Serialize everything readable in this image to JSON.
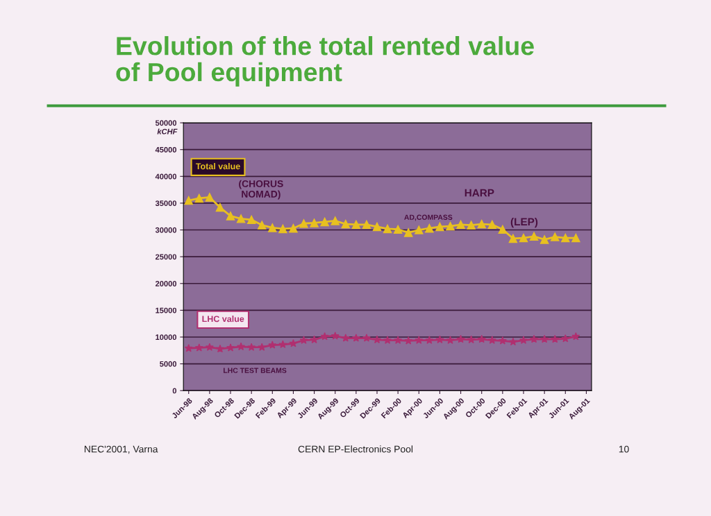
{
  "chart_data": {
    "type": "line",
    "title": "Evolution of the total rented value\nof Pool equipment",
    "ylabel": "kCHF",
    "categories": [
      "Jun-98",
      null,
      "Aug-98",
      null,
      "Oct-98",
      null,
      "Dec-98",
      null,
      "Feb-99",
      null,
      "Apr-99",
      null,
      "Jun-99",
      null,
      "Aug-99",
      null,
      "Oct-99",
      null,
      "Dec-99",
      null,
      "Feb-00",
      null,
      "Apr-00",
      null,
      "Jun-00",
      null,
      "Aug-00",
      null,
      "Oct-00",
      null,
      "Dec-00",
      null,
      "Feb-01",
      null,
      "Apr-01",
      null,
      "Jun-01",
      null,
      "Aug-01"
    ],
    "series": [
      {
        "name": "Total value",
        "color": "#e8c020",
        "marker": "triangle",
        "values": [
          35500,
          35900,
          36100,
          34200,
          32600,
          32100,
          31900,
          30900,
          30400,
          30200,
          30300,
          31200,
          31300,
          31500,
          31700,
          31100,
          31000,
          31000,
          30600,
          30200,
          30100,
          29500,
          30000,
          30300,
          30600,
          30700,
          31000,
          30900,
          31100,
          31000,
          30100,
          28400,
          28500,
          28800,
          28200,
          28700,
          28500,
          28500,
          null
        ]
      },
      {
        "name": "LHC value",
        "color": "#b03070",
        "marker": "star",
        "values": [
          7900,
          8000,
          8100,
          7800,
          8000,
          8200,
          8100,
          8100,
          8500,
          8600,
          8800,
          9400,
          9500,
          10100,
          10200,
          9800,
          9800,
          9800,
          9500,
          9400,
          9400,
          9300,
          9400,
          9400,
          9500,
          9400,
          9600,
          9500,
          9600,
          9400,
          9300,
          9100,
          9400,
          9600,
          9600,
          9600,
          9700,
          10100,
          null
        ]
      }
    ],
    "ylim": [
      0,
      50000
    ],
    "yticks": [
      0,
      5000,
      10000,
      15000,
      20000,
      25000,
      30000,
      35000,
      40000,
      45000,
      50000
    ],
    "grid": "y",
    "line_style": "solid",
    "legend": false,
    "annotations": [
      "(CHORUS\nNOMAD)",
      "AD,COMPASS",
      "HARP",
      "(LEP)",
      "LHC TEST BEAMS",
      "NEC'2001, Varna",
      "CERN EP-Electronics Pool",
      "10"
    ]
  }
}
